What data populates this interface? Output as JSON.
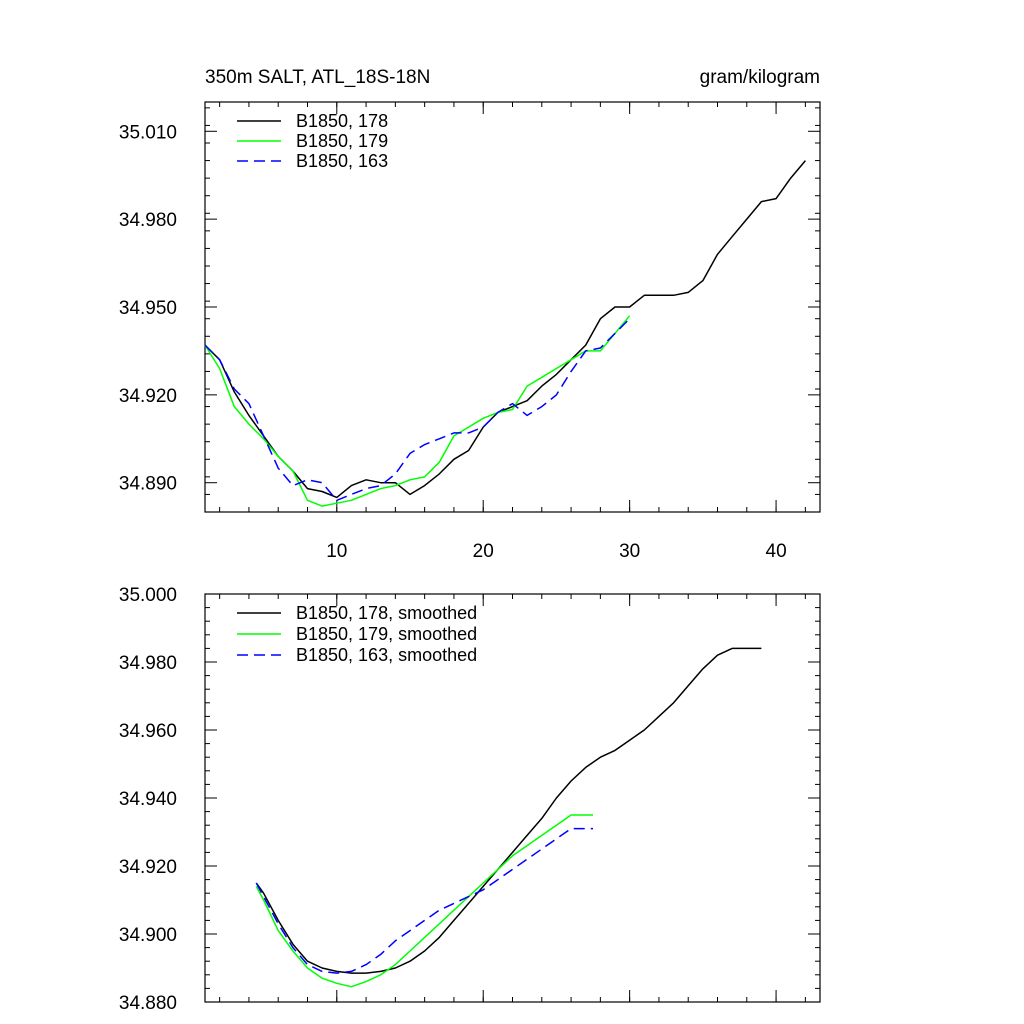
{
  "chart_data": [
    {
      "type": "line",
      "title": "350m SALT, ATL_18S-18N",
      "units": "gram/kilogram",
      "xlim": [
        1,
        43
      ],
      "ylim": [
        34.88,
        35.02
      ],
      "xticks": [
        10,
        20,
        30,
        40
      ],
      "xtick_labels": [
        "10",
        "20",
        "30",
        "40"
      ],
      "yticks": [
        34.89,
        34.92,
        34.95,
        34.98,
        35.01
      ],
      "ytick_labels": [
        "34.890",
        "34.920",
        "34.950",
        "34.980",
        "35.010"
      ],
      "legend_position": "top-left",
      "series": [
        {
          "name": "B1850, 178",
          "color": "#000000",
          "dash": "solid",
          "x": [
            1,
            2,
            3,
            4,
            5,
            6,
            7,
            8,
            9,
            10,
            11,
            12,
            13,
            14,
            15,
            16,
            17,
            18,
            19,
            20,
            21,
            22,
            23,
            24,
            25,
            26,
            27,
            28,
            29,
            30,
            31,
            32,
            33,
            34,
            35,
            36,
            37,
            38,
            39,
            40,
            41,
            42
          ],
          "y": [
            34.937,
            34.932,
            34.921,
            34.913,
            34.906,
            34.899,
            34.894,
            34.888,
            34.887,
            34.885,
            34.889,
            34.891,
            34.89,
            34.89,
            34.886,
            34.889,
            34.893,
            34.898,
            34.901,
            34.909,
            34.914,
            34.916,
            34.918,
            34.923,
            34.927,
            34.932,
            34.937,
            34.946,
            34.95,
            34.95,
            34.954,
            34.954,
            34.954,
            34.955,
            34.959,
            34.968,
            34.974,
            34.98,
            34.986,
            34.987,
            34.994,
            35.0
          ]
        },
        {
          "name": "B1850, 179",
          "color": "#00ff00",
          "dash": "solid",
          "x": [
            1,
            2,
            3,
            4,
            5,
            6,
            7,
            8,
            9,
            10,
            11,
            12,
            13,
            14,
            15,
            16,
            17,
            18,
            19,
            20,
            21,
            22,
            23,
            24,
            25,
            26,
            27,
            28,
            29,
            30
          ],
          "y": [
            34.937,
            34.929,
            34.916,
            34.91,
            34.905,
            34.899,
            34.894,
            34.884,
            34.882,
            34.883,
            34.884,
            34.886,
            34.888,
            34.889,
            34.891,
            34.892,
            34.897,
            34.906,
            34.909,
            34.912,
            34.914,
            34.915,
            34.923,
            34.926,
            34.929,
            34.932,
            34.935,
            34.935,
            34.941,
            34.947
          ]
        },
        {
          "name": "B1850, 163",
          "color": "#0000ff",
          "dash": "dashed",
          "x": [
            1,
            2,
            3,
            4,
            5,
            6,
            7,
            8,
            9,
            10,
            11,
            12,
            13,
            14,
            15,
            16,
            17,
            18,
            19,
            20,
            21,
            22,
            23,
            24,
            25,
            26,
            27,
            28,
            29,
            30
          ],
          "y": [
            34.937,
            34.932,
            34.922,
            34.917,
            34.906,
            34.895,
            34.889,
            34.891,
            34.89,
            34.884,
            34.886,
            34.888,
            34.889,
            34.893,
            34.9,
            34.903,
            34.905,
            34.907,
            34.907,
            34.909,
            34.914,
            34.917,
            34.913,
            34.916,
            34.92,
            34.928,
            34.935,
            34.936,
            34.941,
            34.946
          ]
        }
      ]
    },
    {
      "type": "line",
      "title": "",
      "units": "",
      "xlim": [
        1,
        43
      ],
      "ylim": [
        34.88,
        35.0
      ],
      "xticks": [
        10,
        20,
        30,
        40
      ],
      "xtick_labels": [],
      "yticks": [
        34.88,
        34.9,
        34.92,
        34.94,
        34.96,
        34.98,
        35.0
      ],
      "ytick_labels": [
        "34.880",
        "34.900",
        "34.920",
        "34.940",
        "34.960",
        "34.980",
        "35.000"
      ],
      "legend_position": "top-left",
      "series": [
        {
          "name": "B1850, 178, smoothed",
          "color": "#000000",
          "dash": "solid",
          "x": [
            4.5,
            5,
            6,
            7,
            8,
            9,
            10,
            11,
            12,
            13,
            14,
            15,
            16,
            17,
            18,
            19,
            20,
            21,
            22,
            23,
            24,
            25,
            26,
            27,
            28,
            29,
            30,
            31,
            32,
            33,
            34,
            35,
            36,
            37,
            38,
            39
          ],
          "y": [
            34.915,
            34.912,
            34.904,
            34.897,
            34.892,
            34.89,
            34.889,
            34.8885,
            34.8885,
            34.889,
            34.89,
            34.892,
            34.895,
            34.899,
            34.904,
            34.909,
            34.914,
            34.919,
            34.924,
            34.929,
            34.934,
            34.94,
            34.945,
            34.949,
            34.952,
            34.954,
            34.957,
            34.96,
            34.964,
            34.968,
            34.973,
            34.978,
            34.982,
            34.984,
            34.984,
            34.984
          ]
        },
        {
          "name": "B1850, 179, smoothed",
          "color": "#00ff00",
          "dash": "solid",
          "x": [
            4.5,
            5,
            6,
            7,
            8,
            9,
            10,
            11,
            12,
            13,
            14,
            15,
            16,
            17,
            18,
            19,
            20,
            21,
            22,
            23,
            24,
            25,
            26,
            27.5
          ],
          "y": [
            34.914,
            34.91,
            34.901,
            34.895,
            34.89,
            34.887,
            34.8855,
            34.8845,
            34.886,
            34.888,
            34.891,
            34.895,
            34.899,
            34.903,
            34.907,
            34.911,
            34.915,
            34.919,
            34.923,
            34.926,
            34.929,
            34.932,
            34.935,
            34.935
          ]
        },
        {
          "name": "B1850, 163, smoothed",
          "color": "#0000ff",
          "dash": "dashed",
          "x": [
            4.5,
            5,
            6,
            7,
            8,
            9,
            10,
            11,
            12,
            13,
            14,
            15,
            16,
            17,
            18,
            19,
            20,
            21,
            22,
            23,
            24,
            25,
            26,
            27.5
          ],
          "y": [
            34.915,
            34.911,
            34.903,
            34.896,
            34.891,
            34.889,
            34.8885,
            34.889,
            34.891,
            34.894,
            34.898,
            34.901,
            34.904,
            34.907,
            34.909,
            34.911,
            34.913,
            34.916,
            34.919,
            34.922,
            34.925,
            34.928,
            34.931,
            34.931
          ]
        }
      ]
    }
  ]
}
